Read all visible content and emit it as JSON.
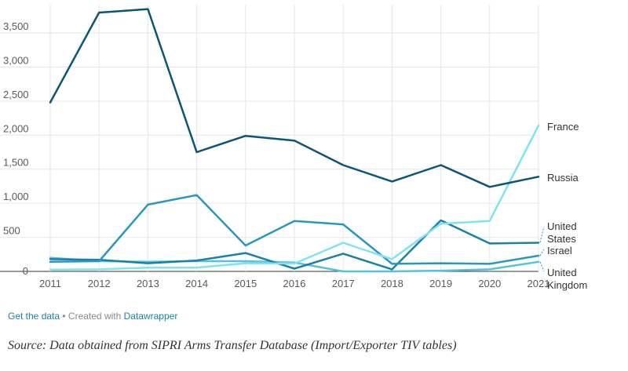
{
  "chart_data": {
    "type": "line",
    "title": "",
    "xlabel": "",
    "ylabel": "",
    "x": [
      2011,
      2012,
      2013,
      2014,
      2015,
      2016,
      2017,
      2018,
      2019,
      2020,
      2021
    ],
    "x_tick_labels": [
      "2011",
      "2012",
      "2013",
      "2014",
      "2015",
      "2016",
      "2017",
      "2018",
      "2019",
      "2020",
      "2021"
    ],
    "ylim": [
      0,
      3700
    ],
    "y_ticks": [
      0,
      500,
      1000,
      1500,
      2000,
      2500,
      3000,
      3500
    ],
    "y_tick_labels": [
      "0",
      "500",
      "1,000",
      "1,500",
      "2,000",
      "2,500",
      "3,000",
      "3,500"
    ],
    "grid": true,
    "series": [
      {
        "name": "France",
        "color": "#7fe3f0",
        "values": [
          25,
          30,
          55,
          55,
          120,
          115,
          420,
          180,
          700,
          740,
          2140
        ]
      },
      {
        "name": "Russia",
        "color": "#0b5576",
        "values": [
          2480,
          3800,
          3850,
          1750,
          1990,
          1920,
          1560,
          1320,
          1560,
          1240,
          1390
        ]
      },
      {
        "name": "United States",
        "color": "#1b80a8",
        "values": [
          180,
          170,
          120,
          160,
          270,
          40,
          260,
          30,
          750,
          410,
          420
        ]
      },
      {
        "name": "Israel",
        "color": "#2a97c0",
        "values": [
          140,
          150,
          980,
          1120,
          380,
          740,
          690,
          110,
          120,
          110,
          230
        ]
      },
      {
        "name": "United Kingdom",
        "color": "#55c0e0",
        "values": [
          200,
          150,
          140,
          150,
          150,
          130,
          0,
          0,
          10,
          30,
          140
        ]
      }
    ]
  },
  "footer": {
    "get_data": "Get the data",
    "sep": " • Created with ",
    "tool": "Datawrapper"
  },
  "source": "Source: Data obtained from SIPRI Arms Transfer Database (Import/Exporter TIV tables)"
}
